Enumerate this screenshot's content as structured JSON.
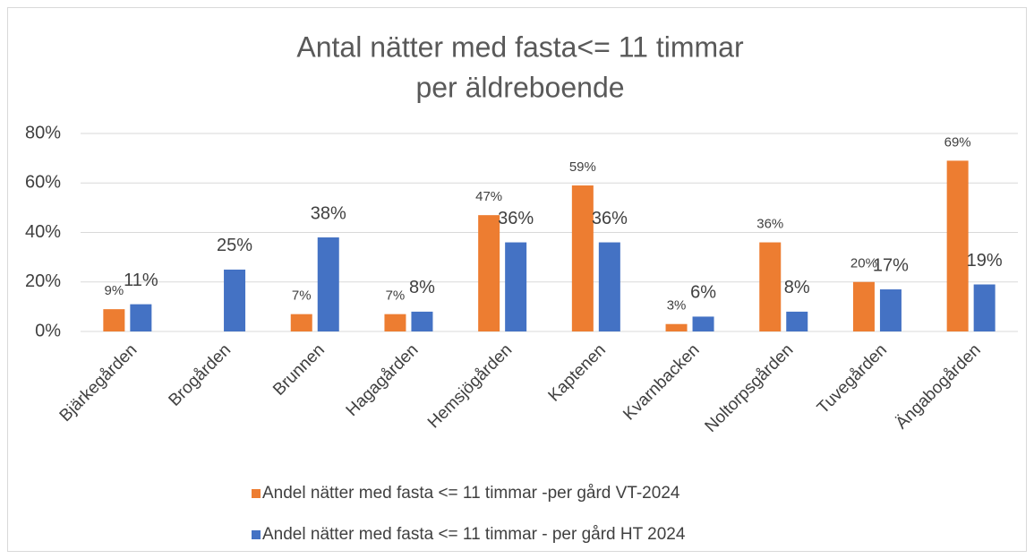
{
  "chart_data": {
    "type": "bar",
    "title": [
      "Antal nätter med fasta<= 11 timmar",
      "per äldreboende"
    ],
    "categories": [
      "Bjärkegården",
      "Brogården",
      "Brunnen",
      "Hagagården",
      "Hemsjögården",
      "Kaptenen",
      "Kvarnbacken",
      "Noltorpsgården",
      "Tuvegården",
      "Ängabogården"
    ],
    "series": [
      {
        "name": "Andel nätter med fasta <= 11 timmar -per gård VT-2024",
        "color": "#ed7d31",
        "values": [
          9,
          null,
          7,
          7,
          47,
          59,
          3,
          36,
          20,
          69
        ],
        "value_labels": [
          "9%",
          null,
          "7%",
          "7%",
          "47%",
          "59%",
          "3%",
          "36%",
          "20%",
          "69%"
        ]
      },
      {
        "name": "Andel nätter med fasta <= 11 timmar - per gård HT 2024",
        "color": "#4472c4",
        "values": [
          11,
          25,
          38,
          8,
          36,
          36,
          6,
          8,
          17,
          19
        ],
        "value_labels": [
          "11%",
          "25%",
          "38%",
          "8%",
          "36%",
          "36%",
          "6%",
          "8%",
          "17%",
          "19%"
        ]
      }
    ],
    "ylim": [
      0,
      80
    ],
    "yticks": [
      {
        "value": 0,
        "label": "0%"
      },
      {
        "value": 20,
        "label": "20%"
      },
      {
        "value": 40,
        "label": "40%"
      },
      {
        "value": 60,
        "label": "60%"
      },
      {
        "value": 80,
        "label": "80%"
      }
    ],
    "grid": true,
    "legend": "bottom"
  }
}
